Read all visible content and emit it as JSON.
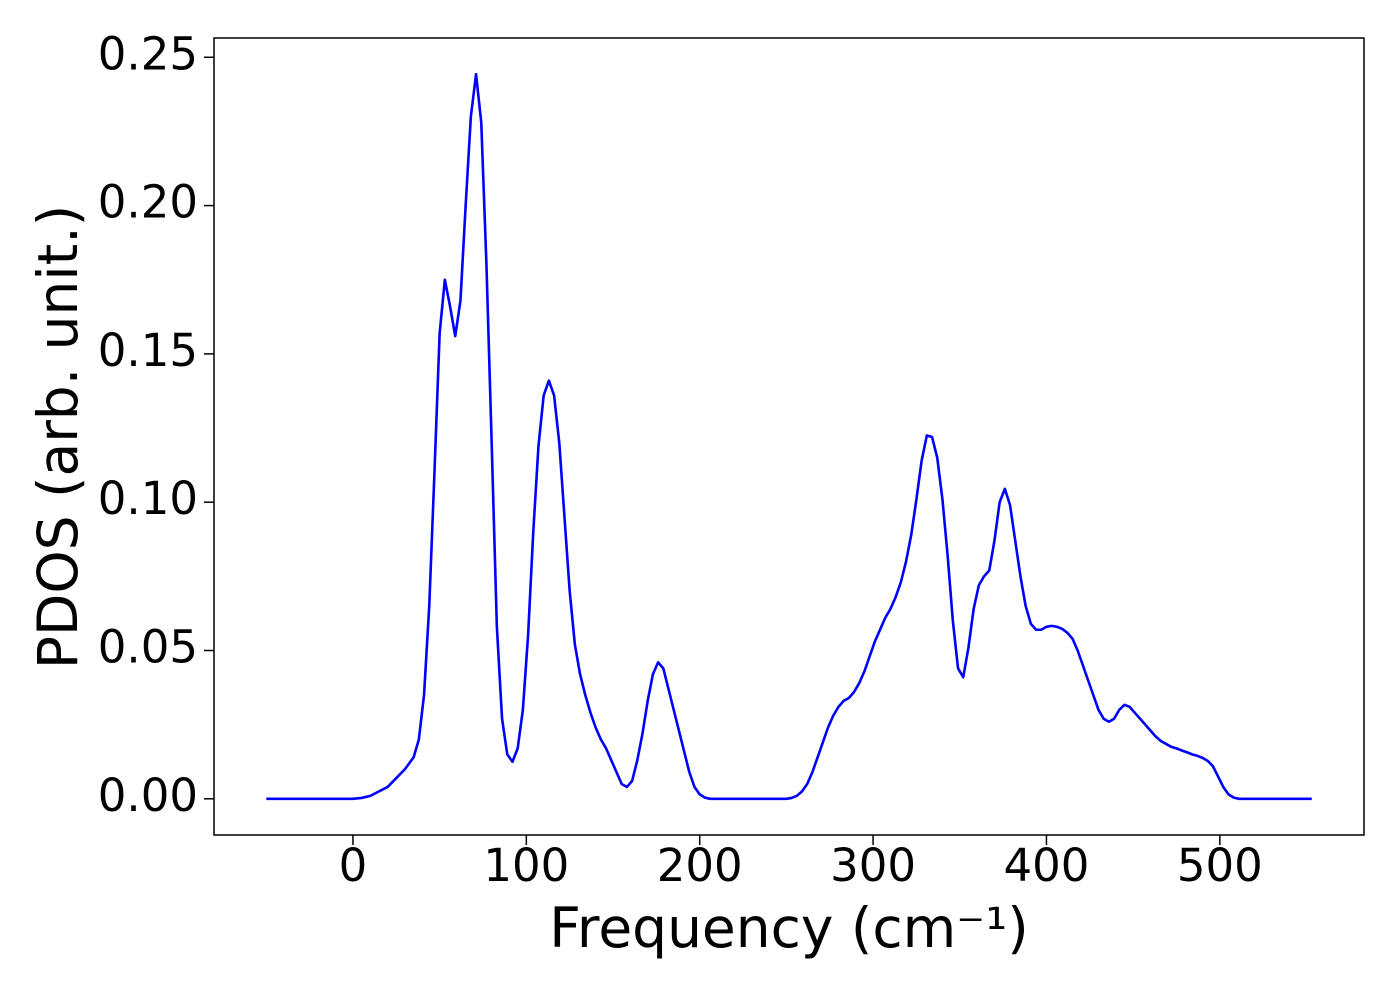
{
  "chart_data": {
    "type": "line",
    "x_label": "Frequency (cm⁻¹)",
    "y_label": "PDOS (arb. unit.)",
    "x": [
      -50,
      0,
      5,
      10,
      15,
      20,
      25,
      30,
      35,
      38,
      41,
      44,
      47,
      50,
      53,
      56,
      59,
      62,
      65,
      68,
      71,
      74,
      77,
      80,
      83,
      86,
      89,
      92,
      95,
      98,
      101,
      104,
      107,
      110,
      113,
      116,
      119,
      122,
      125,
      128,
      131,
      134,
      137,
      140,
      143,
      146,
      149,
      152,
      155,
      158,
      161,
      164,
      167,
      170,
      173,
      176,
      179,
      182,
      185,
      188,
      191,
      194,
      197,
      200,
      203,
      206,
      250,
      253,
      256,
      259,
      262,
      265,
      268,
      271,
      274,
      277,
      280,
      283,
      286,
      289,
      292,
      295,
      298,
      301,
      304,
      307,
      310,
      313,
      316,
      319,
      322,
      325,
      328,
      331,
      334,
      337,
      340,
      343,
      346,
      349,
      352,
      355,
      358,
      361,
      364,
      367,
      370,
      373,
      376,
      379,
      382,
      385,
      388,
      391,
      394,
      397,
      400,
      403,
      406,
      409,
      412,
      415,
      418,
      421,
      424,
      427,
      430,
      433,
      436,
      439,
      442,
      445,
      448,
      451,
      454,
      457,
      460,
      463,
      466,
      469,
      472,
      475,
      478,
      481,
      484,
      487,
      490,
      493,
      496,
      499,
      502,
      505,
      508,
      511,
      553
    ],
    "series": [
      {
        "color": "#0000ff",
        "values": [
          0,
          0,
          0.0003,
          0.001,
          0.0025,
          0.004,
          0.007,
          0.01,
          0.014,
          0.02,
          0.035,
          0.065,
          0.11,
          0.157,
          0.175,
          0.166,
          0.156,
          0.168,
          0.2,
          0.23,
          0.2443,
          0.228,
          0.18,
          0.12,
          0.058,
          0.027,
          0.015,
          0.0125,
          0.017,
          0.03,
          0.055,
          0.09,
          0.119,
          0.136,
          0.141,
          0.136,
          0.12,
          0.095,
          0.07,
          0.052,
          0.042,
          0.035,
          0.029,
          0.024,
          0.02,
          0.017,
          0.013,
          0.009,
          0.005,
          0.004,
          0.006,
          0.013,
          0.022,
          0.033,
          0.042,
          0.046,
          0.044,
          0.037,
          0.03,
          0.023,
          0.016,
          0.009,
          0.004,
          0.0015,
          0.0004,
          0,
          0,
          0.0003,
          0.001,
          0.0025,
          0.005,
          0.009,
          0.014,
          0.019,
          0.024,
          0.028,
          0.031,
          0.033,
          0.034,
          0.036,
          0.039,
          0.043,
          0.048,
          0.053,
          0.057,
          0.061,
          0.064,
          0.068,
          0.073,
          0.08,
          0.089,
          0.101,
          0.114,
          0.1225,
          0.122,
          0.115,
          0.101,
          0.082,
          0.06,
          0.044,
          0.041,
          0.051,
          0.064,
          0.072,
          0.075,
          0.077,
          0.087,
          0.1,
          0.1045,
          0.099,
          0.087,
          0.075,
          0.065,
          0.059,
          0.057,
          0.057,
          0.058,
          0.0583,
          0.058,
          0.0573,
          0.056,
          0.054,
          0.05,
          0.045,
          0.04,
          0.035,
          0.03,
          0.027,
          0.026,
          0.027,
          0.03,
          0.0317,
          0.031,
          0.029,
          0.027,
          0.025,
          0.023,
          0.021,
          0.0195,
          0.0185,
          0.0175,
          0.017,
          0.0163,
          0.0157,
          0.015,
          0.0145,
          0.0138,
          0.0128,
          0.011,
          0.0075,
          0.004,
          0.0015,
          0.0004,
          0,
          0
        ]
      }
    ],
    "xlim": [
      -80.15,
      583.15
    ],
    "ylim": [
      -0.0122,
      0.2565
    ],
    "xticks": [
      0,
      100,
      200,
      300,
      400,
      500
    ],
    "yticks": [
      {
        "value": 0,
        "label": "0.00"
      },
      {
        "value": 0.05,
        "label": "0.05"
      },
      {
        "value": 0.1,
        "label": "0.10"
      },
      {
        "value": 0.15,
        "label": "0.15"
      },
      {
        "value": 0.2,
        "label": "0.20"
      },
      {
        "value": 0.25,
        "label": "0.25"
      }
    ]
  }
}
